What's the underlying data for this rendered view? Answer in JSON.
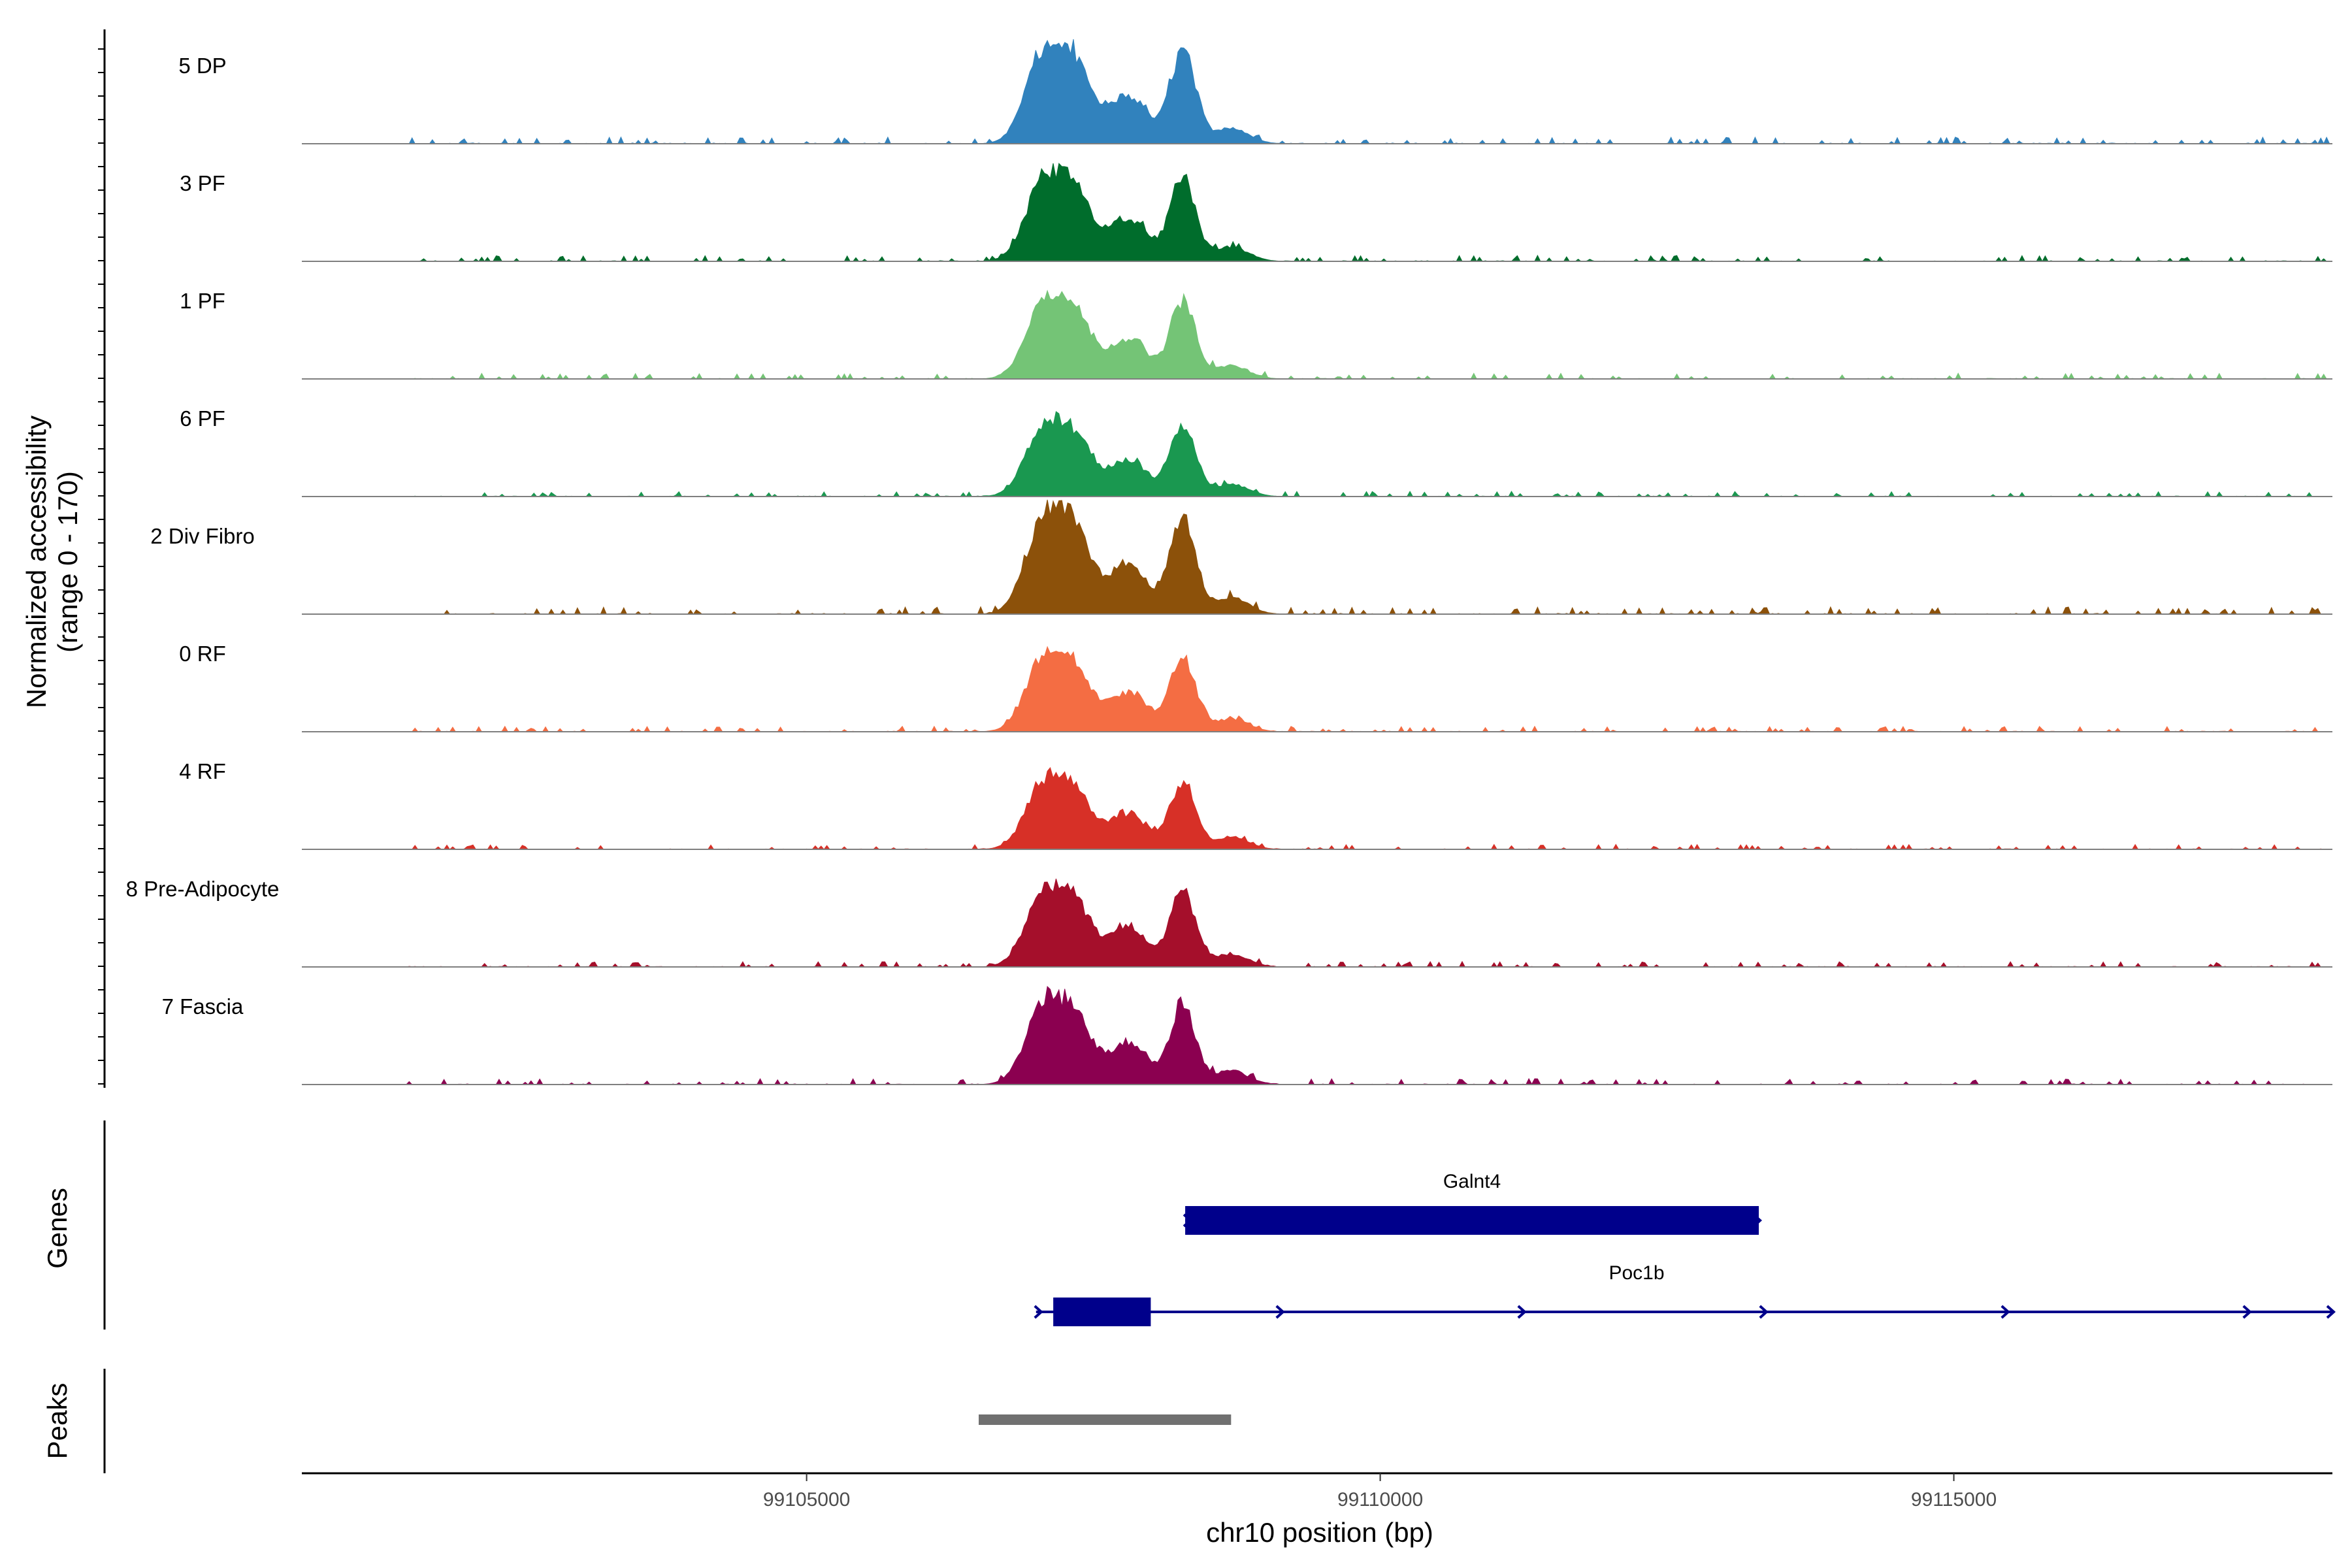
{
  "chart_data": {
    "type": "area",
    "title": "",
    "xlabel": "chr10 position (bp)",
    "ylabel_line1": "Normalized accessibility",
    "ylabel_line2": "(range 0 - 170)",
    "ylim": [
      0,
      170
    ],
    "xlim": [
      99100600,
      99118300
    ],
    "x_ticks": [
      99105000,
      99110000,
      99115000
    ],
    "x_tick_labels": [
      "99105000",
      "99110000",
      "99115000"
    ],
    "peak_profile": {
      "components": [
        {
          "center": 99107070,
          "width": 160,
          "amp": 1.0
        },
        {
          "center": 99107350,
          "width": 140,
          "amp": 0.75
        },
        {
          "center": 99107800,
          "width": 170,
          "amp": 0.55
        },
        {
          "center": 99108280,
          "width": 110,
          "amp": 1.05
        },
        {
          "center": 99108700,
          "width": 150,
          "amp": 0.18
        }
      ]
    },
    "series": [
      {
        "name": "5 DP",
        "color": "#3182bd",
        "max_value": 160
      },
      {
        "name": "3 PF",
        "color": "#006d2c",
        "max_value": 150
      },
      {
        "name": "1 PF",
        "color": "#74c476",
        "max_value": 135
      },
      {
        "name": "6 PF",
        "color": "#1a9850",
        "max_value": 130
      },
      {
        "name": "2 Div Fibro",
        "color": "#8c510a",
        "max_value": 175
      },
      {
        "name": "0 RF",
        "color": "#f46d43",
        "max_value": 130
      },
      {
        "name": "4 RF",
        "color": "#d73027",
        "max_value": 125
      },
      {
        "name": "8 Pre-Adipocyte",
        "color": "#a50f2b",
        "max_value": 135
      },
      {
        "name": "7 Fascia",
        "color": "#8b0050",
        "max_value": 150
      }
    ],
    "genes_track": {
      "title": "Genes",
      "color": "#00008b",
      "genes": [
        {
          "name": "Galnt4",
          "start": 99108300,
          "end": 99113300,
          "exons": [
            [
              99108300,
              99113300
            ]
          ],
          "row": 0
        },
        {
          "name": "Poc1b",
          "start": 99107000,
          "end": 99118300,
          "exons": [
            [
              99107150,
              99108000
            ]
          ],
          "row": 1
        }
      ]
    },
    "peaks_track": {
      "title": "Peaks",
      "color": "#707070",
      "peaks": [
        [
          99106500,
          99108700
        ]
      ]
    }
  }
}
